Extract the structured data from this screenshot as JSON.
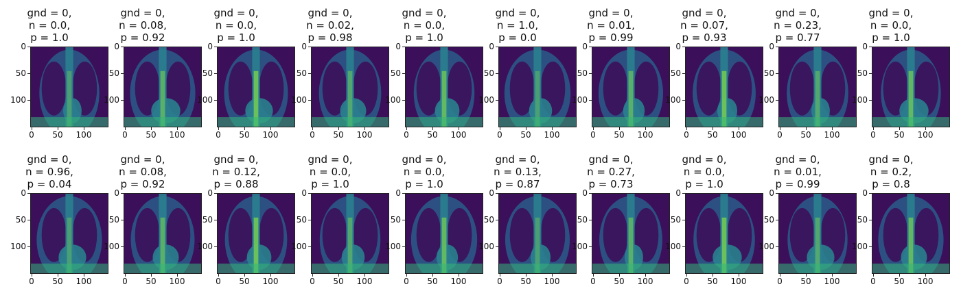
{
  "image_grid": {
    "row1": [
      {
        "gnd": "gnd = 0,",
        "n": "n = 0.0,",
        "p": "p = 1.0"
      },
      {
        "gnd": "gnd = 0,",
        "n": "n = 0.08,",
        "p": "p = 0.92"
      },
      {
        "gnd": "gnd = 0,",
        "n": "n = 0.0,",
        "p": "p = 1.0"
      },
      {
        "gnd": "gnd = 0,",
        "n": "n = 0.02,",
        "p": "p = 0.98"
      },
      {
        "gnd": "gnd = 0,",
        "n": "n = 0.0,",
        "p": "p = 1.0"
      },
      {
        "gnd": "gnd = 0,",
        "n": "n = 1.0,",
        "p": "p = 0.0"
      },
      {
        "gnd": "gnd = 0,",
        "n": "n = 0.01,",
        "p": "p = 0.99"
      },
      {
        "gnd": "gnd = 0,",
        "n": "n = 0.07,",
        "p": "p = 0.93"
      },
      {
        "gnd": "gnd = 0,",
        "n": "n = 0.23,",
        "p": "p = 0.77"
      },
      {
        "gnd": "gnd = 0,",
        "n": "n = 0.0,",
        "p": "p = 1.0"
      }
    ],
    "row2": [
      {
        "gnd": "gnd = 0,",
        "n": "n = 0.96,",
        "p": "p = 0.04"
      },
      {
        "gnd": "gnd = 0,",
        "n": "n = 0.08,",
        "p": "p = 0.92"
      },
      {
        "gnd": "gnd = 0,",
        "n": "n = 0.12,",
        "p": "p = 0.88"
      },
      {
        "gnd": "gnd = 0,",
        "n": "n = 0.0,",
        "p": "p = 1.0"
      },
      {
        "gnd": "gnd = 0,",
        "n": "n = 0.0,",
        "p": "p = 1.0"
      },
      {
        "gnd": "gnd = 0,",
        "n": "n = 0.13,",
        "p": "p = 0.87"
      },
      {
        "gnd": "gnd = 0,",
        "n": "n = 0.27,",
        "p": "p = 0.73"
      },
      {
        "gnd": "gnd = 0,",
        "n": "n = 0.0,",
        "p": "p = 1.0"
      },
      {
        "gnd": "gnd = 0,",
        "n": "n = 0.01,",
        "p": "p = 0.99"
      },
      {
        "gnd": "gnd = 0,",
        "n": "n = 0.2,",
        "p": "p = 0.8"
      }
    ]
  },
  "axis": {
    "y_ticks": [
      "0",
      "50",
      "100"
    ],
    "x_ticks": [
      "0",
      "50",
      "100"
    ]
  },
  "colors": {
    "background_dark": "#3b0f5a",
    "mid": "#2a7f8e",
    "bright": "#7ad151"
  }
}
